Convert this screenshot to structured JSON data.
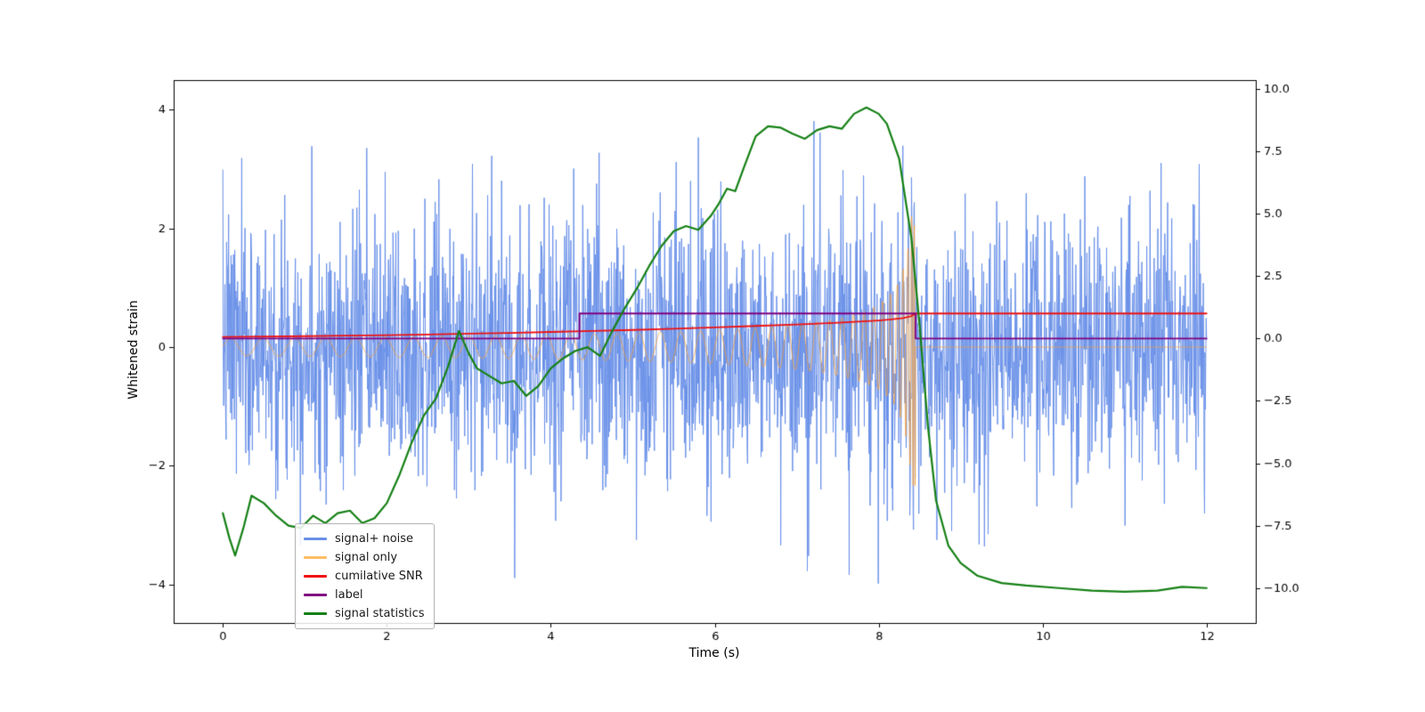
{
  "window": {
    "background": "#ffffff"
  },
  "chart_data": {
    "type": "line",
    "title": "",
    "xlabel": "Time (s)",
    "ylabel_left": "Whitened strain",
    "ylabel_right": "",
    "grid": false,
    "legend_position": "lower left",
    "x_range": [
      -0.6,
      12.6
    ],
    "y_left_range": [
      -4.65,
      4.5
    ],
    "y_right_range": [
      -11.4,
      10.35
    ],
    "x_ticks": {
      "values": [
        0,
        2,
        4,
        6,
        8,
        10,
        12
      ],
      "labels": [
        "0",
        "2",
        "4",
        "6",
        "8",
        "10",
        "12"
      ]
    },
    "y_left_ticks": {
      "values": [
        -4,
        -2,
        0,
        2,
        4
      ],
      "labels": [
        "−4",
        "−2",
        "0",
        "2",
        "4"
      ]
    },
    "y_right_ticks": {
      "values": [
        -10,
        -7.5,
        -5,
        -2.5,
        0,
        2.5,
        5,
        7.5,
        10
      ],
      "labels": [
        "−10.0",
        "−7.5",
        "−5.0",
        "−2.5",
        "0.0",
        "2.5",
        "5.0",
        "7.5",
        "10.0"
      ]
    },
    "legend": [
      {
        "label": "signal+ noise",
        "color": "#6990e8"
      },
      {
        "label": "signal only",
        "color": "#ffbd66"
      },
      {
        "label": "cumilative SNR",
        "color": "#ee1111"
      },
      {
        "label": "label",
        "color": "#800080"
      },
      {
        "label": "signal statistics",
        "color": "#158015"
      }
    ],
    "series": [
      {
        "name": "signal+ noise",
        "axis": "left",
        "render": "noise_plus_signal",
        "color": "#6990e8",
        "line_width": 1,
        "noise_std": 1.08,
        "samples_per_second": 200,
        "seed": 7,
        "approx_range": [
          -4.2,
          4.05
        ]
      },
      {
        "name": "signal only",
        "axis": "left",
        "render": "chirp",
        "color": "#ff9e2a",
        "alpha": 0.7,
        "line_width": 1,
        "t_merge": 8.45,
        "amp0": 0.145,
        "amp_exp": -0.55,
        "amp_max": 2.35,
        "f0": 2.5,
        "f_exp": -0.45,
        "f_max": 40,
        "post_merge_value": 0
      },
      {
        "name": "cumilative SNR",
        "axis": "right",
        "render": "points",
        "color": "#ee1111",
        "line_width": 1.8,
        "points": [
          [
            0,
            0.06
          ],
          [
            0.5,
            0.075
          ],
          [
            1,
            0.09
          ],
          [
            1.5,
            0.11
          ],
          [
            2,
            0.13
          ],
          [
            2.5,
            0.16
          ],
          [
            3,
            0.19
          ],
          [
            3.5,
            0.22
          ],
          [
            4,
            0.26
          ],
          [
            4.5,
            0.3
          ],
          [
            5,
            0.34
          ],
          [
            5.5,
            0.39
          ],
          [
            6,
            0.44
          ],
          [
            6.5,
            0.5
          ],
          [
            7,
            0.56
          ],
          [
            7.5,
            0.63
          ],
          [
            7.8,
            0.68
          ],
          [
            8.0,
            0.72
          ],
          [
            8.15,
            0.76
          ],
          [
            8.3,
            0.82
          ],
          [
            8.4,
            0.9
          ],
          [
            8.45,
            1.0
          ],
          [
            9,
            1.0
          ],
          [
            10,
            1.0
          ],
          [
            11,
            1.0
          ],
          [
            12,
            1.0
          ]
        ]
      },
      {
        "name": "label",
        "axis": "right",
        "render": "points",
        "color": "#800080",
        "line_width": 1.8,
        "points": [
          [
            0,
            0
          ],
          [
            4.35,
            0
          ],
          [
            4.35,
            1
          ],
          [
            8.45,
            1
          ],
          [
            8.45,
            0
          ],
          [
            12,
            0
          ]
        ]
      },
      {
        "name": "signal statistics",
        "axis": "right",
        "render": "points",
        "color": "#158015",
        "line_width": 2.2,
        "points": [
          [
            0,
            -7.0
          ],
          [
            0.08,
            -8.0
          ],
          [
            0.15,
            -8.7
          ],
          [
            0.25,
            -7.6
          ],
          [
            0.35,
            -6.3
          ],
          [
            0.5,
            -6.6
          ],
          [
            0.65,
            -7.1
          ],
          [
            0.8,
            -7.5
          ],
          [
            0.95,
            -7.6
          ],
          [
            1.1,
            -7.1
          ],
          [
            1.25,
            -7.4
          ],
          [
            1.4,
            -7.0
          ],
          [
            1.55,
            -6.9
          ],
          [
            1.7,
            -7.4
          ],
          [
            1.85,
            -7.2
          ],
          [
            2.0,
            -6.6
          ],
          [
            2.15,
            -5.5
          ],
          [
            2.3,
            -4.2
          ],
          [
            2.45,
            -3.1
          ],
          [
            2.6,
            -2.4
          ],
          [
            2.75,
            -1.1
          ],
          [
            2.88,
            0.3
          ],
          [
            3.0,
            -0.6
          ],
          [
            3.1,
            -1.2
          ],
          [
            3.25,
            -1.5
          ],
          [
            3.4,
            -1.8
          ],
          [
            3.55,
            -1.7
          ],
          [
            3.7,
            -2.3
          ],
          [
            3.85,
            -1.9
          ],
          [
            4.0,
            -1.2
          ],
          [
            4.15,
            -0.8
          ],
          [
            4.3,
            -0.5
          ],
          [
            4.45,
            -0.35
          ],
          [
            4.6,
            -0.7
          ],
          [
            4.75,
            0.3
          ],
          [
            4.9,
            1.2
          ],
          [
            5.05,
            2.0
          ],
          [
            5.2,
            2.9
          ],
          [
            5.35,
            3.7
          ],
          [
            5.5,
            4.3
          ],
          [
            5.65,
            4.5
          ],
          [
            5.8,
            4.35
          ],
          [
            5.95,
            4.9
          ],
          [
            6.05,
            5.4
          ],
          [
            6.15,
            6.0
          ],
          [
            6.25,
            5.9
          ],
          [
            6.35,
            6.8
          ],
          [
            6.5,
            8.1
          ],
          [
            6.65,
            8.5
          ],
          [
            6.8,
            8.45
          ],
          [
            6.95,
            8.2
          ],
          [
            7.1,
            8.0
          ],
          [
            7.25,
            8.35
          ],
          [
            7.4,
            8.5
          ],
          [
            7.55,
            8.4
          ],
          [
            7.7,
            9.0
          ],
          [
            7.85,
            9.25
          ],
          [
            8.0,
            9.0
          ],
          [
            8.1,
            8.6
          ],
          [
            8.25,
            7.2
          ],
          [
            8.4,
            4.0
          ],
          [
            8.5,
            0.5
          ],
          [
            8.6,
            -3.5
          ],
          [
            8.7,
            -6.5
          ],
          [
            8.85,
            -8.3
          ],
          [
            9.0,
            -9.0
          ],
          [
            9.2,
            -9.5
          ],
          [
            9.5,
            -9.8
          ],
          [
            9.8,
            -9.9
          ],
          [
            10.2,
            -10.0
          ],
          [
            10.6,
            -10.1
          ],
          [
            11.0,
            -10.15
          ],
          [
            11.4,
            -10.1
          ],
          [
            11.7,
            -9.95
          ],
          [
            12.0,
            -10.0
          ]
        ]
      }
    ]
  }
}
